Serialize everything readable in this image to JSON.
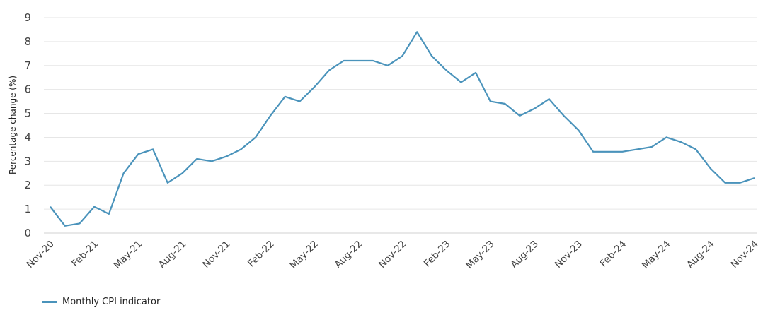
{
  "chart_data": {
    "type": "line",
    "title": "",
    "xlabel": "",
    "ylabel": "Percentage change (%)",
    "ylim": [
      0,
      9
    ],
    "yticks": [
      0,
      1,
      2,
      3,
      4,
      5,
      6,
      7,
      8,
      9
    ],
    "grid": true,
    "legend_position": "bottom-left",
    "xtick_labels": [
      "Nov-20",
      "Feb-21",
      "May-21",
      "Aug-21",
      "Nov-21",
      "Feb-22",
      "May-22",
      "Aug-22",
      "Nov-22",
      "Feb-23",
      "May-23",
      "Aug-23",
      "Nov-23",
      "Feb-24",
      "May-24",
      "Aug-24",
      "Nov-24"
    ],
    "x": [
      "Nov-20",
      "Dec-20",
      "Jan-21",
      "Feb-21",
      "Mar-21",
      "Apr-21",
      "May-21",
      "Jun-21",
      "Jul-21",
      "Aug-21",
      "Sep-21",
      "Oct-21",
      "Nov-21",
      "Dec-21",
      "Jan-22",
      "Feb-22",
      "Mar-22",
      "Apr-22",
      "May-22",
      "Jun-22",
      "Jul-22",
      "Aug-22",
      "Sep-22",
      "Oct-22",
      "Nov-22",
      "Dec-22",
      "Jan-23",
      "Feb-23",
      "Mar-23",
      "Apr-23",
      "May-23",
      "Jun-23",
      "Jul-23",
      "Aug-23",
      "Sep-23",
      "Oct-23",
      "Nov-23",
      "Dec-23",
      "Jan-24",
      "Feb-24",
      "Mar-24",
      "Apr-24",
      "May-24",
      "Jun-24",
      "Jul-24",
      "Aug-24",
      "Sep-24",
      "Oct-24",
      "Nov-24"
    ],
    "series": [
      {
        "name": "Monthly CPI indicator",
        "color": "#4a93bb",
        "values": [
          1.1,
          0.3,
          0.4,
          1.1,
          0.8,
          2.5,
          3.3,
          3.5,
          2.1,
          2.5,
          3.1,
          3.0,
          3.2,
          3.5,
          4.0,
          4.9,
          5.7,
          5.5,
          6.1,
          6.8,
          7.2,
          7.2,
          7.2,
          7.0,
          7.4,
          8.4,
          7.4,
          6.8,
          6.3,
          6.7,
          5.5,
          5.4,
          4.9,
          5.2,
          5.6,
          4.9,
          4.3,
          3.4,
          3.4,
          3.4,
          3.5,
          3.6,
          4.0,
          3.8,
          3.5,
          2.7,
          2.1,
          2.1,
          2.3
        ]
      }
    ]
  },
  "legend": {
    "label": "Monthly CPI indicator",
    "color": "#4a93bb"
  },
  "colors": {
    "grid": "#e6e6e6",
    "axis": "#d0d0d0"
  }
}
